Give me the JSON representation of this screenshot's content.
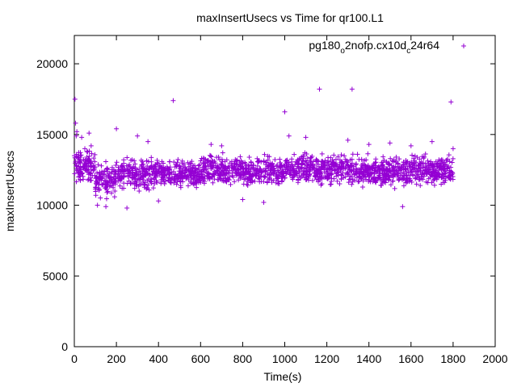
{
  "chart_data": {
    "type": "scatter",
    "title": "maxInsertUsecs vs Time for qr100.L1",
    "xlabel": "Time(s)",
    "ylabel": "maxInsertUsecs",
    "xlim": [
      0,
      2000
    ],
    "ylim": [
      0,
      22000
    ],
    "xticks": [
      "0",
      "200",
      "400",
      "600",
      "800",
      "1000",
      "1200",
      "1400",
      "1600",
      "1800",
      "2000"
    ],
    "yticks": [
      "0",
      "5000",
      "10000",
      "15000",
      "20000"
    ],
    "grid": false,
    "legend_position": "top-right",
    "series": [
      {
        "name": "pg180_o2nofp.cx10d_c24r64",
        "legend": {
          "base1": "pg180",
          "sub1": "o",
          "mid": "2nofp.cx10d",
          "sub2": "c",
          "tail": "24r64"
        },
        "color": "#9400d3",
        "marker": "plus",
        "points": [
          [
            0,
            13500
          ],
          [
            3,
            17500
          ],
          [
            6,
            15800
          ],
          [
            9,
            14900
          ],
          [
            12,
            15200
          ],
          [
            20,
            12000
          ],
          [
            35,
            14800
          ],
          [
            50,
            14000
          ],
          [
            60,
            13800
          ],
          [
            70,
            15100
          ],
          [
            80,
            14200
          ],
          [
            110,
            10000
          ],
          [
            150,
            9900
          ],
          [
            200,
            15400
          ],
          [
            250,
            9800
          ],
          [
            300,
            14900
          ],
          [
            350,
            14500
          ],
          [
            400,
            10300
          ],
          [
            470,
            17400
          ],
          [
            650,
            14300
          ],
          [
            700,
            14200
          ],
          [
            800,
            10400
          ],
          [
            900,
            10200
          ],
          [
            1000,
            16600
          ],
          [
            1020,
            14900
          ],
          [
            1100,
            14800
          ],
          [
            1165,
            18200
          ],
          [
            1300,
            14600
          ],
          [
            1320,
            18200
          ],
          [
            1400,
            14300
          ],
          [
            1500,
            14400
          ],
          [
            1560,
            9900
          ],
          [
            1600,
            14200
          ],
          [
            1700,
            14500
          ],
          [
            1790,
            17300
          ],
          [
            1800,
            14000
          ]
        ],
        "bands": [
          {
            "from": 0,
            "to": 100,
            "low": 11300,
            "high": 14200,
            "n": 120
          },
          {
            "from": 100,
            "to": 200,
            "low": 10200,
            "high": 13400,
            "n": 110
          },
          {
            "from": 200,
            "to": 400,
            "low": 10800,
            "high": 13700,
            "n": 220
          },
          {
            "from": 400,
            "to": 600,
            "low": 10900,
            "high": 13400,
            "n": 220
          },
          {
            "from": 600,
            "to": 800,
            "low": 11000,
            "high": 13900,
            "n": 220
          },
          {
            "from": 800,
            "to": 1000,
            "low": 11000,
            "high": 13800,
            "n": 220
          },
          {
            "from": 1000,
            "to": 1200,
            "low": 11100,
            "high": 14000,
            "n": 220
          },
          {
            "from": 1200,
            "to": 1400,
            "low": 11100,
            "high": 13900,
            "n": 220
          },
          {
            "from": 1400,
            "to": 1600,
            "low": 11000,
            "high": 13800,
            "n": 220
          },
          {
            "from": 1600,
            "to": 1800,
            "low": 11100,
            "high": 13800,
            "n": 220
          }
        ]
      }
    ]
  }
}
